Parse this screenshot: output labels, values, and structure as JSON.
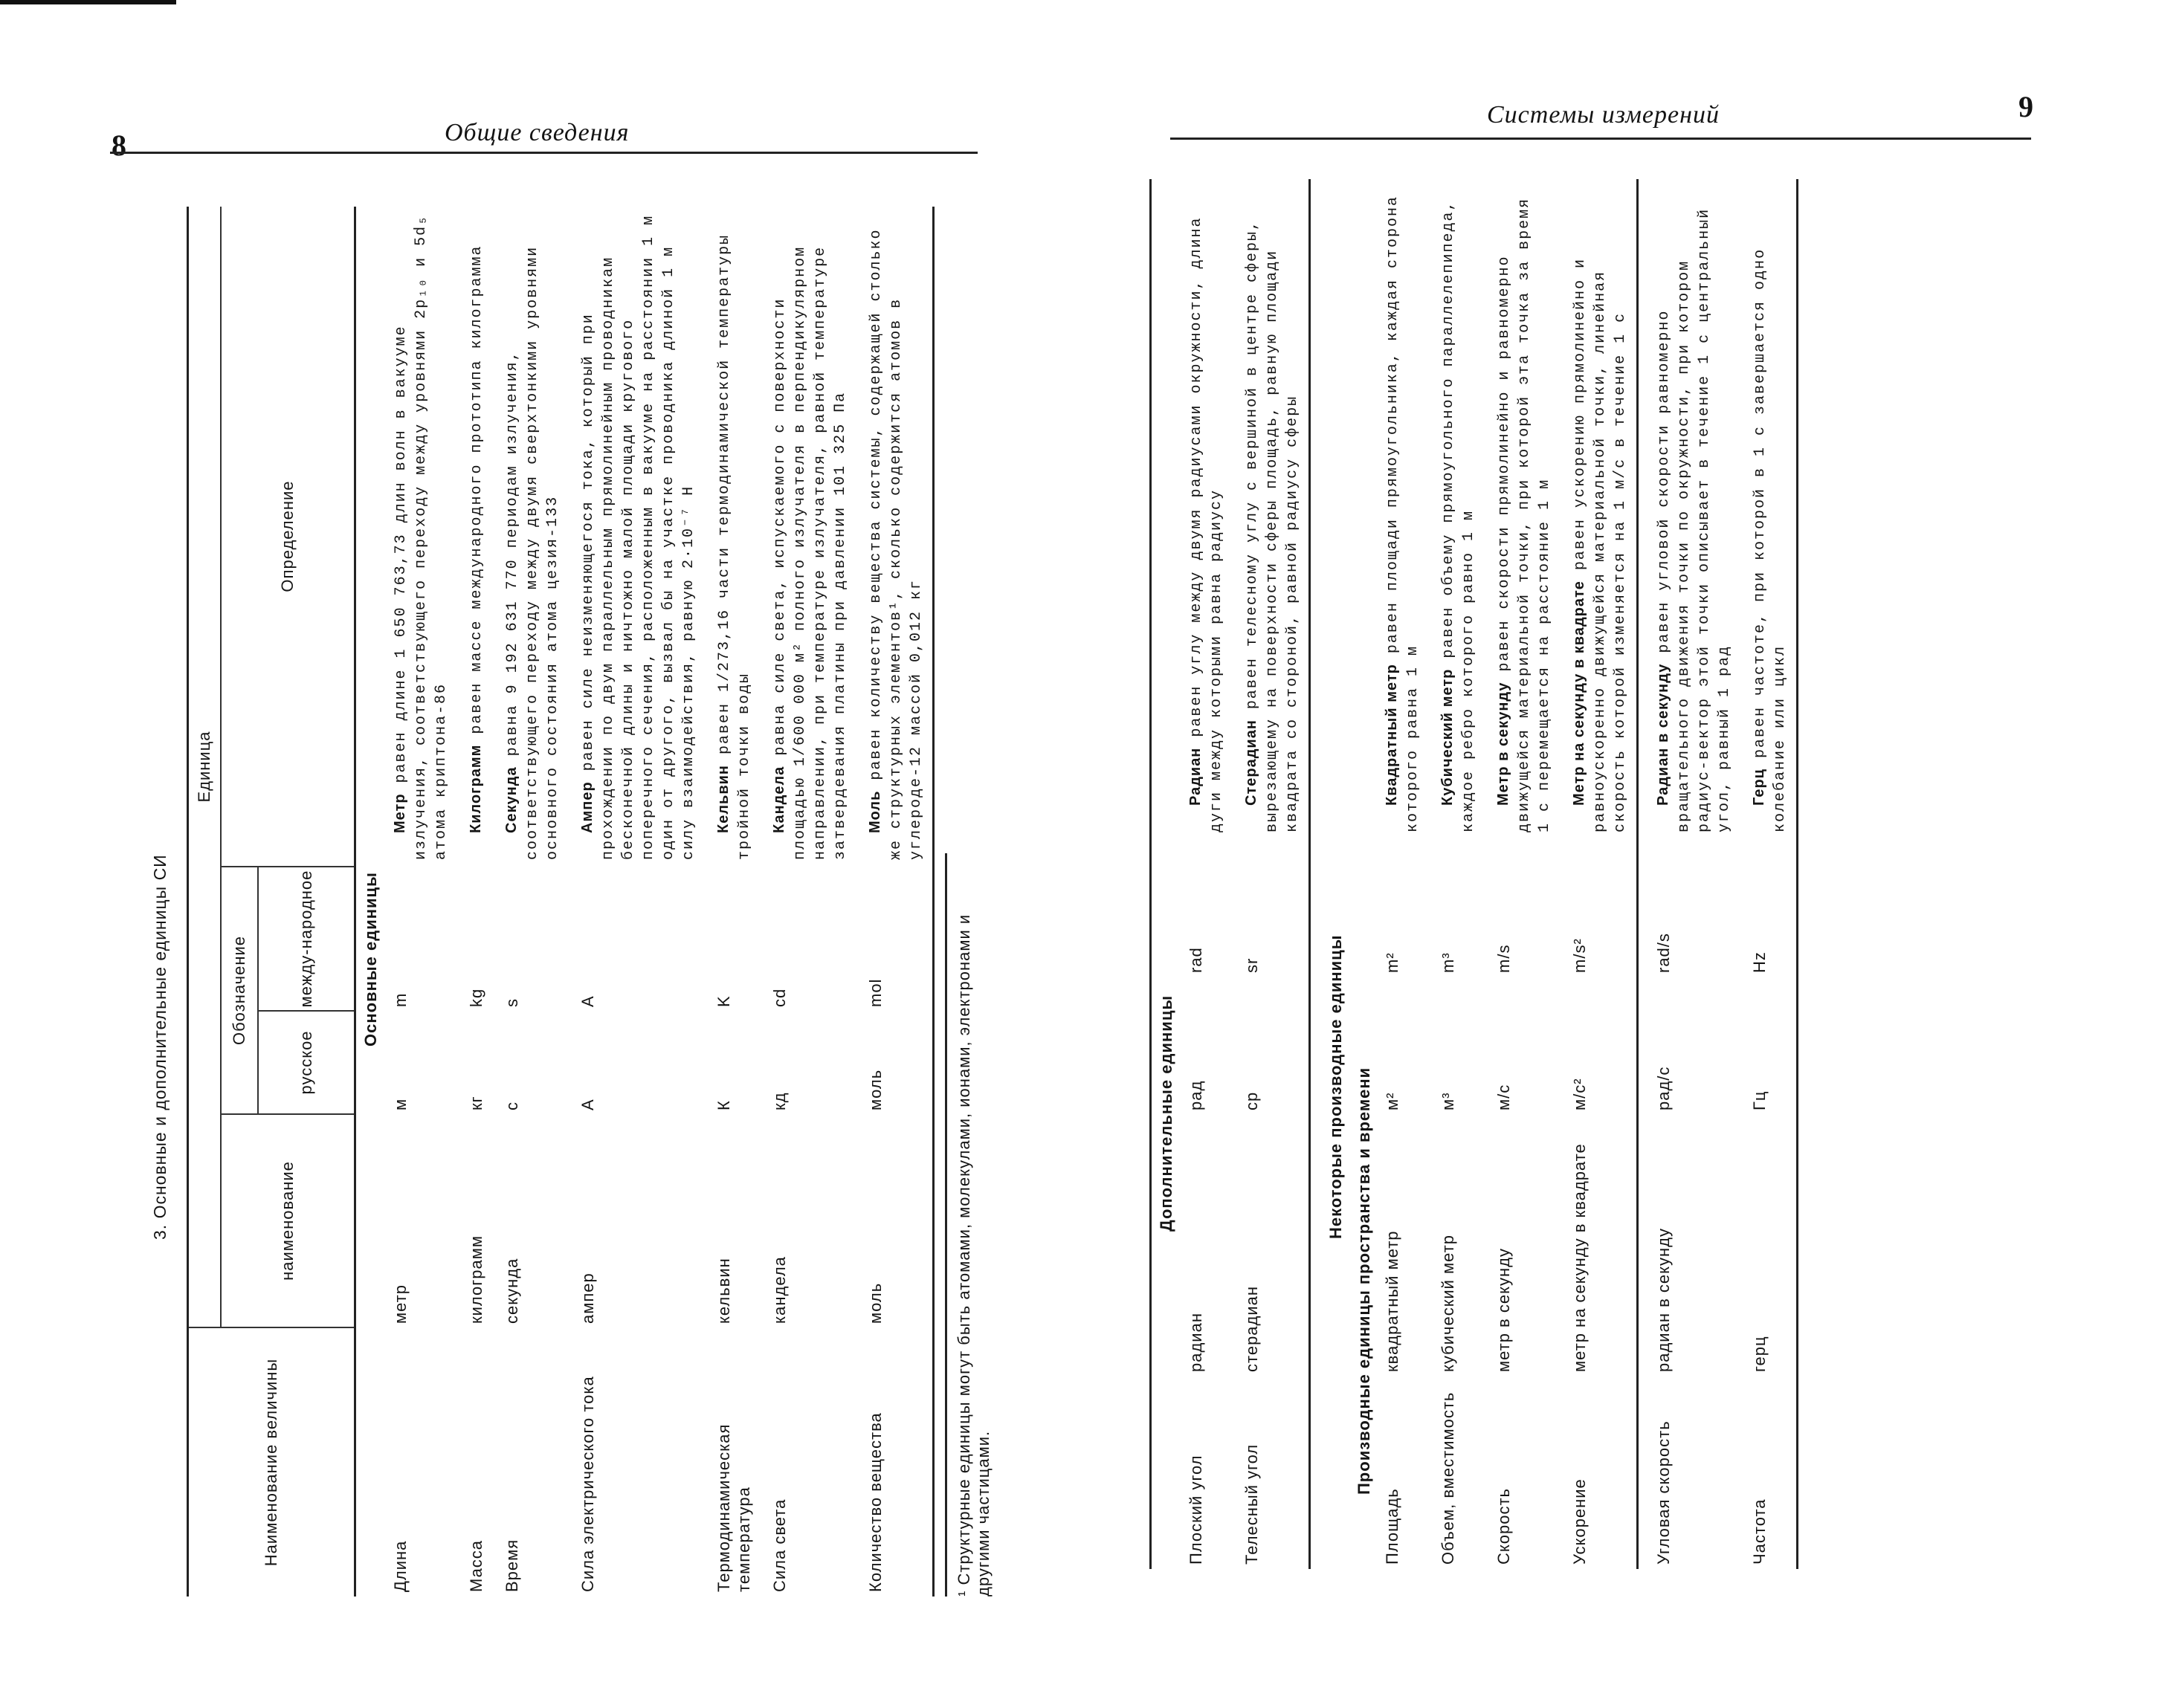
{
  "left_page": {
    "page_number": "8",
    "running_head": "Общие сведения",
    "table": {
      "caption": "3. Основные и дополнительные единицы СИ",
      "headers": {
        "quantity": "Наименование величины",
        "unit": "Единица",
        "name": "наименование",
        "designation": "Обозначение",
        "russian": "русское",
        "international": "между-народное",
        "definition": "Определение"
      },
      "sections": [
        {
          "title": "Основные единицы",
          "rows": [
            {
              "quantity": "Длина",
              "name": "метр",
              "ru": "м",
              "intl": "m",
              "term": "Метр",
              "text": " равен длине 1 650 763,73 длин волн в вакууме излучения, соответствующего переходу между уровнями 2p₁₀ и 5d₅ атома криптона-86"
            },
            {
              "quantity": "Масса",
              "name": "килограмм",
              "ru": "кг",
              "intl": "kg",
              "term": "Килограмм",
              "text": " равен массе международного прототипа килограмма"
            },
            {
              "quantity": "Время",
              "name": "секунда",
              "ru": "с",
              "intl": "s",
              "term": "Секунда",
              "text": " равна 9 192 631 770 периодам излучения, соответствующего переходу между двумя сверхтонкими уровнями основного состояния атома цезия-133"
            },
            {
              "quantity": "Сила электрического тока",
              "name": "ампер",
              "ru": "А",
              "intl": "A",
              "term": "Ампер",
              "text": " равен силе неизменяющегося тока, который при прохождении по двум параллельным прямолинейным проводникам бесконечной длины и ничтожно малой площади кругового поперечного сечения, расположенным в вакууме на расстоянии 1 м один от другого, вызвал бы на участке проводника длиной 1 м силу взаимодействия, равную 2·10⁻⁷ Н"
            },
            {
              "quantity": "Термодинамическая температура",
              "name": "кельвин",
              "ru": "К",
              "intl": "K",
              "term": "Кельвин",
              "text": " равен 1/273,16 части термодинамической температуры тройной точки воды"
            },
            {
              "quantity": "Сила света",
              "name": "кандела",
              "ru": "кд",
              "intl": "cd",
              "term": "Кандела",
              "text": " равна силе света, испускаемого с поверхности площадью 1/600 000 м² полного излучателя в перпендикулярном направлении, при температуре излучателя, равной температуре затвердевания платины при давлении 101 325 Па"
            },
            {
              "quantity": "Количество вещества",
              "name": "моль",
              "ru": "моль",
              "intl": "mol",
              "term": "Моль",
              "text": " равен количеству вещества системы, содержащей столько же структурных элементов¹, сколько содержится атомов в углероде-12 массой 0,012 кг"
            }
          ]
        }
      ],
      "footnote": "¹ Структурные единицы могут быть атомами, молекулами, ионами, электронами и другими частицами."
    }
  },
  "right_page": {
    "page_number": "9",
    "running_head": "Системы измерений",
    "table": {
      "sections": [
        {
          "title": "Дополнительные единицы",
          "rows": [
            {
              "quantity": "Плоский угол",
              "name": "радиан",
              "ru": "рад",
              "intl": "rad",
              "term": "Радиан",
              "text": " равен углу между двумя радиусами окружности, длина дуги между которыми равна радиусу"
            },
            {
              "quantity": "Телесный угол",
              "name": "стерадиан",
              "ru": "ср",
              "intl": "sr",
              "term": "Стерадиан",
              "text": " равен телесному углу с вершиной в центре сферы, вырезающему на поверхности сферы площадь, равную площади квадрата со стороной, равной радиусу сферы"
            }
          ]
        },
        {
          "title": "Некоторые производные единицы",
          "subtitle": "Производные единицы пространства и времени",
          "rows": [
            {
              "quantity": "Площадь",
              "name": "квадратный метр",
              "ru": "м²",
              "intl": "m²",
              "term": "Квадратный метр",
              "text": " равен площади прямоугольника, каждая сторона которого равна 1 м"
            },
            {
              "quantity": "Объем, вместимость",
              "name": "кубический метр",
              "ru": "м³",
              "intl": "m³",
              "term": "Кубический метр",
              "text": " равен объему прямоугольного параллелепипеда, каждое ребро которого равно 1 м"
            },
            {
              "quantity": "Скорость",
              "name": "метр в секунду",
              "ru": "м/с",
              "intl": "m/s",
              "term": "Метр в секунду",
              "text": " равен скорости прямолинейно и равномерно движущейся материальной точки, при которой эта точка за время 1 с перемещается на расстояние 1 м"
            },
            {
              "quantity": "Ускорение",
              "name": "метр на секунду в квадрате",
              "ru": "м/с²",
              "intl": "m/s²",
              "term": "Метр на секунду в квадрате",
              "text": " равен ускорению прямолинейно и равноускоренно движущейся материальной точки, линейная скорость которой изменяется на 1 м/с в течение 1 с",
              "group_end": true
            },
            {
              "quantity": "Угловая скорость",
              "name": "радиан в секунду",
              "ru": "рад/с",
              "intl": "rad/s",
              "term": "Радиан в секунду",
              "text": " равен угловой скорости равномерно вращательного движения точки по окружности, при котором радиус-вектор этой точки описывает в течение 1 с центральный угол, равный 1 рад"
            },
            {
              "quantity": "Частота",
              "name": "герц",
              "ru": "Гц",
              "intl": "Hz",
              "term": "Герц",
              "text": " равен частоте, при которой в 1 с завершается одно колебание или цикл"
            }
          ]
        }
      ]
    }
  }
}
